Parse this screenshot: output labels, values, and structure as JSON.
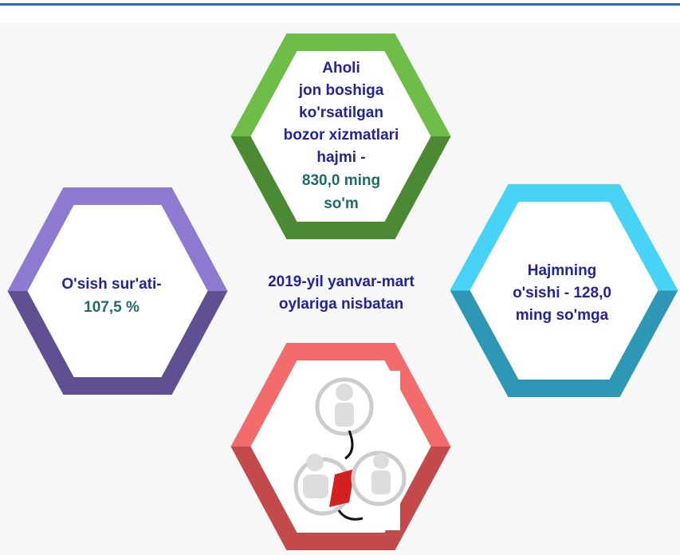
{
  "top_hexagon": {
    "lines": [
      "Aholi",
      "jon boshiga",
      "ko'rsatilgan",
      "bozor xizmatlari",
      "hajmi -"
    ],
    "figure_lines": [
      "830,0 ming",
      "so'm"
    ]
  },
  "left_hexagon": {
    "lines": [
      "O'sish sur'ati-"
    ],
    "figure_lines": [
      "107,5 %"
    ]
  },
  "right_hexagon": {
    "lines": [
      "Hajmning",
      "o'sishi - 128,0",
      "ming so'mga"
    ]
  },
  "center_text": {
    "lines": [
      "2019-yil yanvar-mart",
      "oylariga nisbatan"
    ]
  }
}
